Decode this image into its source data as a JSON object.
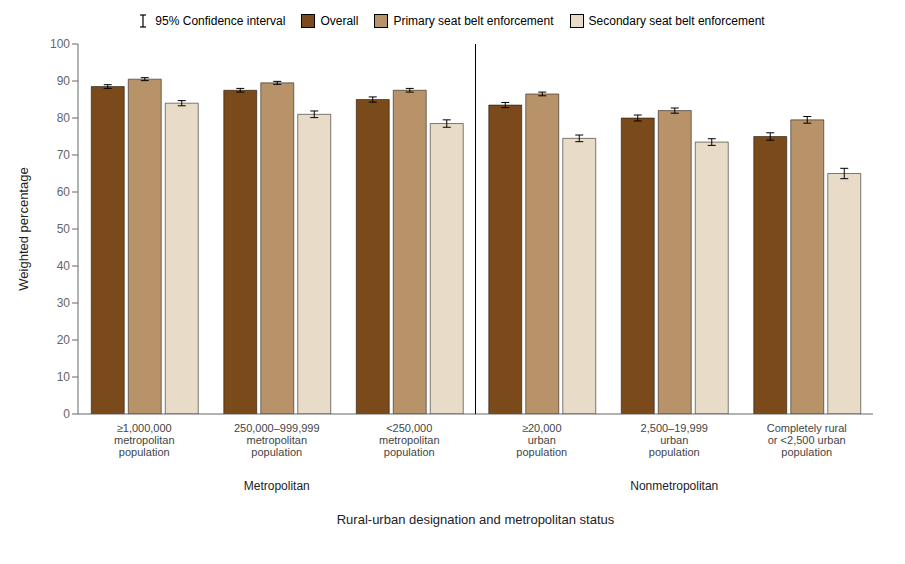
{
  "chart_data": {
    "type": "bar",
    "categories": [
      "≥1,000,000\nmetropolitan\npopulation",
      "250,000–999,999\nmetropolitan\npopulation",
      "<250,000\nmetropolitan\npopulation",
      "≥20,000\nurban\npopulation",
      "2,500–19,999\nurban\npopulation",
      "Completely rural\nor <2,500 urban\npopulation"
    ],
    "series": [
      {
        "name": "Overall",
        "color": "#7B4A1A",
        "values": [
          88.5,
          87.5,
          85.0,
          83.5,
          80.0,
          75.0
        ],
        "errors": [
          0.5,
          0.5,
          0.7,
          0.7,
          0.8,
          1.0
        ]
      },
      {
        "name": "Primary seat belt enforcement",
        "color": "#B8936A",
        "values": [
          90.5,
          89.5,
          87.5,
          86.5,
          82.0,
          79.5
        ],
        "errors": [
          0.4,
          0.4,
          0.5,
          0.5,
          0.7,
          0.9
        ]
      },
      {
        "name": "Secondary seat belt enforcement",
        "color": "#E8DCC8",
        "values": [
          84.0,
          81.0,
          78.5,
          74.5,
          73.5,
          65.0
        ],
        "errors": [
          0.7,
          0.9,
          1.0,
          0.9,
          0.9,
          1.4
        ]
      }
    ],
    "xlabel": "Rural-urban designation and metropolitan status",
    "ylabel": "Weighted percentage",
    "ylim": [
      0,
      100
    ],
    "yticks": [
      0,
      10,
      20,
      30,
      40,
      50,
      60,
      70,
      80,
      90,
      100
    ],
    "annotations": [
      "Metropolitan",
      "Nonmetropolitan"
    ],
    "error_label": "95% Confidence interval",
    "legend": "top"
  }
}
